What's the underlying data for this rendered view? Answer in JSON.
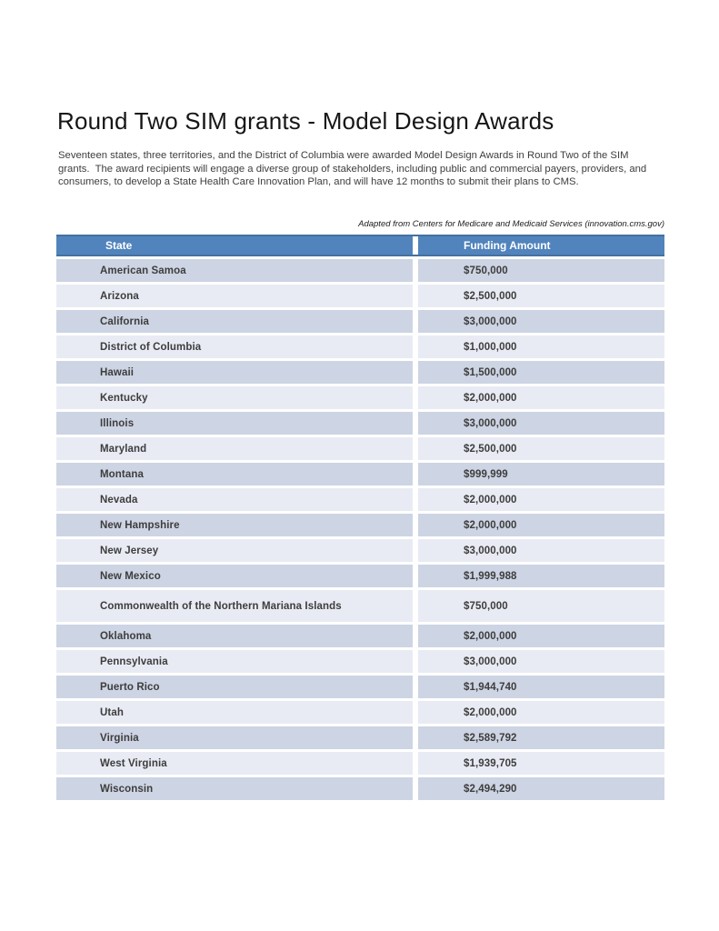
{
  "page": {
    "title": "Round Two SIM grants - Model Design Awards",
    "intro_lines": [
      "Seventeen states, three territories, and the District of Columbia were awarded Model Design Awards in Round Two of the SIM",
      "grants.  The award recipients will engage a diverse group of stakeholders, including public and commercial payers, providers, and",
      "consumers, to develop a State Health Care Innovation Plan, and will have 12 months to submit their plans to CMS."
    ],
    "attribution": "Adapted from Centers for Medicare and Medicaid Services (innovation.cms.gov)"
  },
  "table": {
    "columns": [
      "State",
      "Funding Amount"
    ],
    "rows": [
      {
        "state": "American Samoa",
        "amount": "$750,000"
      },
      {
        "state": "Arizona",
        "amount": "$2,500,000"
      },
      {
        "state": "California",
        "amount": "$3,000,000"
      },
      {
        "state": "District of Columbia",
        "amount": "$1,000,000"
      },
      {
        "state": "Hawaii",
        "amount": "$1,500,000"
      },
      {
        "state": "Kentucky",
        "amount": "$2,000,000"
      },
      {
        "state": "Illinois",
        "amount": "$3,000,000"
      },
      {
        "state": "Maryland",
        "amount": "$2,500,000"
      },
      {
        "state": "Montana",
        "amount": "$999,999"
      },
      {
        "state": "Nevada",
        "amount": "$2,000,000"
      },
      {
        "state": "New Hampshire",
        "amount": "$2,000,000"
      },
      {
        "state": "New Jersey",
        "amount": "$3,000,000"
      },
      {
        "state": "New Mexico",
        "amount": "$1,999,988"
      },
      {
        "state": "Commonwealth of the Northern Mariana Islands",
        "amount": "$750,000"
      },
      {
        "state": "Oklahoma",
        "amount": "$2,000,000"
      },
      {
        "state": "Pennsylvania",
        "amount": "$3,000,000"
      },
      {
        "state": "Puerto Rico",
        "amount": "$1,944,740"
      },
      {
        "state": "Utah",
        "amount": "$2,000,000"
      },
      {
        "state": "Virginia",
        "amount": "$2,589,792"
      },
      {
        "state": "West Virginia",
        "amount": "$1,939,705"
      },
      {
        "state": "Wisconsin",
        "amount": "$2,494,290"
      }
    ]
  },
  "theme": {
    "header_bg": "#5183bc",
    "header_border": "#44719f",
    "header_text": "#ffffff",
    "row_band_dark": "#cdd4e3",
    "row_band_light": "#e9ebf4",
    "body_text": "#3d3d3d",
    "title_text": "#161616"
  }
}
